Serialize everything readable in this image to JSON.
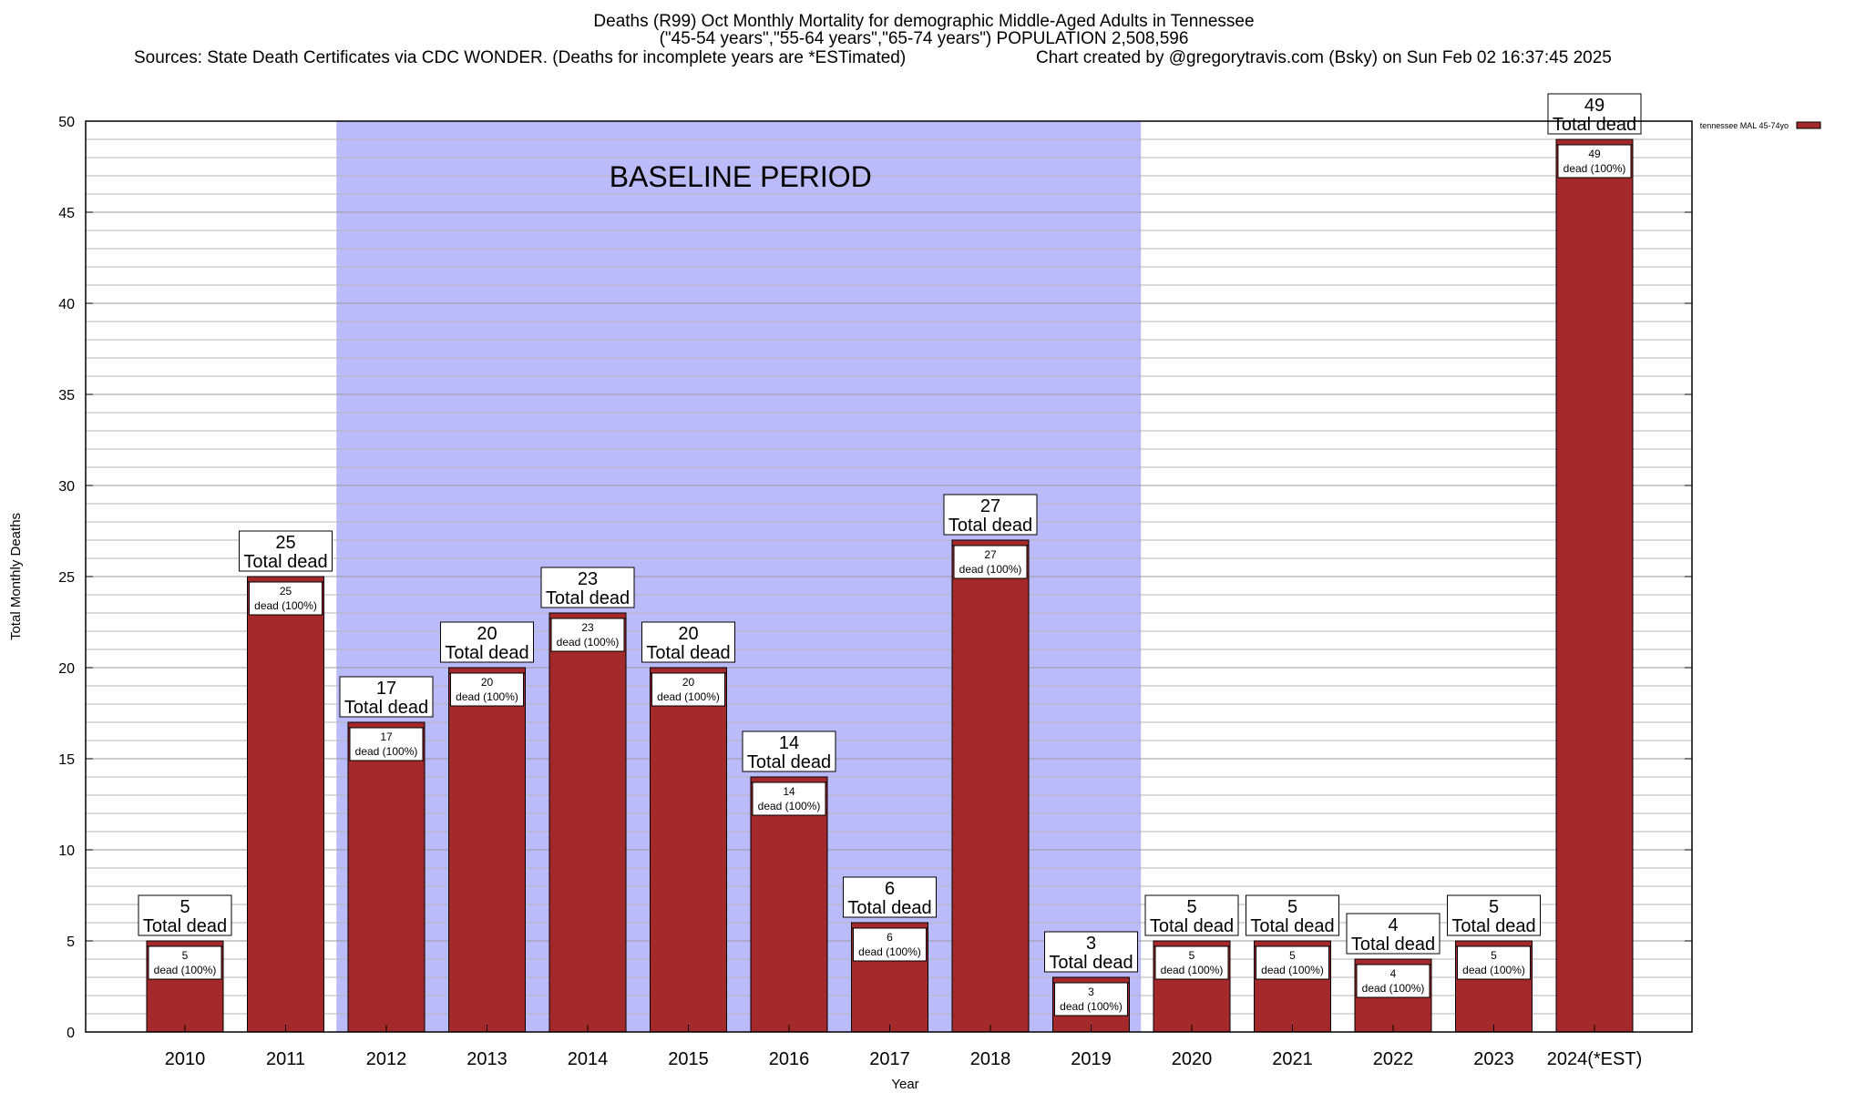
{
  "header": {
    "title_line1": "Deaths (R99) Oct Monthly Mortality for demographic Middle-Aged Adults in Tennessee",
    "title_line2": "(\"45-54 years\",\"55-64 years\",\"65-74 years\") POPULATION 2,508,596",
    "sources": "Sources: State Death Certificates via CDC WONDER. (Deaths for incomplete years are *ESTimated)",
    "credit": "Chart created by @gregorytravis.com (Bsky) on Sun Feb 02 16:37:45 2025"
  },
  "colors": {
    "bar": "#a3292b",
    "baseline_band": "#bbbbf9",
    "grid": "#b5b5b5"
  },
  "chart_data": {
    "type": "bar",
    "categories": [
      "2010",
      "2011",
      "2012",
      "2013",
      "2014",
      "2015",
      "2016",
      "2017",
      "2018",
      "2019",
      "2020",
      "2021",
      "2022",
      "2023",
      "2024(*EST)"
    ],
    "series": [
      {
        "name": "tennessee MAL 45-74yo",
        "values": [
          5,
          25,
          17,
          20,
          23,
          20,
          14,
          6,
          27,
          3,
          5,
          5,
          4,
          5,
          49
        ]
      }
    ],
    "value_label_suffix": "Total dead",
    "inner_label_suffix": "dead (100%)",
    "xlabel": "Year",
    "ylabel": "Total Monthly Deaths",
    "ylim": [
      0,
      50
    ],
    "yticks": [
      0,
      5,
      10,
      15,
      20,
      25,
      30,
      35,
      40,
      45,
      50
    ],
    "minor_grid_step": 1,
    "grid": true,
    "legend_placement": "top-right",
    "annotation": {
      "text": "BASELINE PERIOD",
      "from_category": "2012",
      "to_category": "2019"
    }
  }
}
